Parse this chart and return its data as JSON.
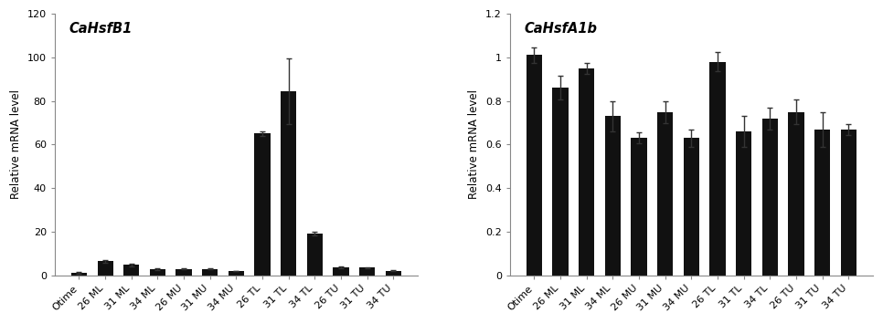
{
  "chart1": {
    "title": "CaHsfB1",
    "categories": [
      "Otime",
      "26 ML",
      "31 ML",
      "34 ML",
      "26 MU",
      "31 MU",
      "34 MU",
      "26 TL",
      "31 TL",
      "34 TL",
      "26 TU",
      "31 TU",
      "34 TU"
    ],
    "values": [
      1.2,
      6.5,
      4.8,
      2.8,
      3.0,
      3.0,
      2.0,
      65.0,
      84.5,
      19.0,
      3.8,
      3.5,
      2.2
    ],
    "errors": [
      0.3,
      0.7,
      0.5,
      0.3,
      0.3,
      0.3,
      0.2,
      1.2,
      15.0,
      0.8,
      0.4,
      0.3,
      0.2
    ],
    "ylabel": "Relative mRNA level",
    "ylim": [
      0,
      120
    ],
    "yticks": [
      0,
      20,
      40,
      60,
      80,
      100,
      120
    ],
    "bar_color": "#111111"
  },
  "chart2": {
    "title": "CaHsfA1b",
    "categories": [
      "Otime",
      "26 ML",
      "31 ML",
      "34 ML",
      "26 MU",
      "31 MU",
      "34 MU",
      "26 TL",
      "31 TL",
      "34 TL",
      "26 TU",
      "31 TU",
      "34 TU"
    ],
    "values": [
      1.01,
      0.86,
      0.95,
      0.73,
      0.63,
      0.75,
      0.63,
      0.98,
      0.66,
      0.72,
      0.75,
      0.67,
      0.67
    ],
    "errors": [
      0.035,
      0.055,
      0.025,
      0.07,
      0.025,
      0.05,
      0.04,
      0.045,
      0.07,
      0.05,
      0.055,
      0.08,
      0.025
    ],
    "ylabel": "Relative mRNA level",
    "ylim": [
      0,
      1.2
    ],
    "yticks": [
      0,
      0.2,
      0.4,
      0.6,
      0.8,
      1.0,
      1.2
    ],
    "ytick_labels": [
      "0",
      "0.2",
      "0.4",
      "0.6",
      "0.8",
      "1",
      "1.2"
    ],
    "bar_color": "#111111"
  },
  "fig_width": 9.66,
  "fig_height": 3.54,
  "bg_color": "#ffffff"
}
